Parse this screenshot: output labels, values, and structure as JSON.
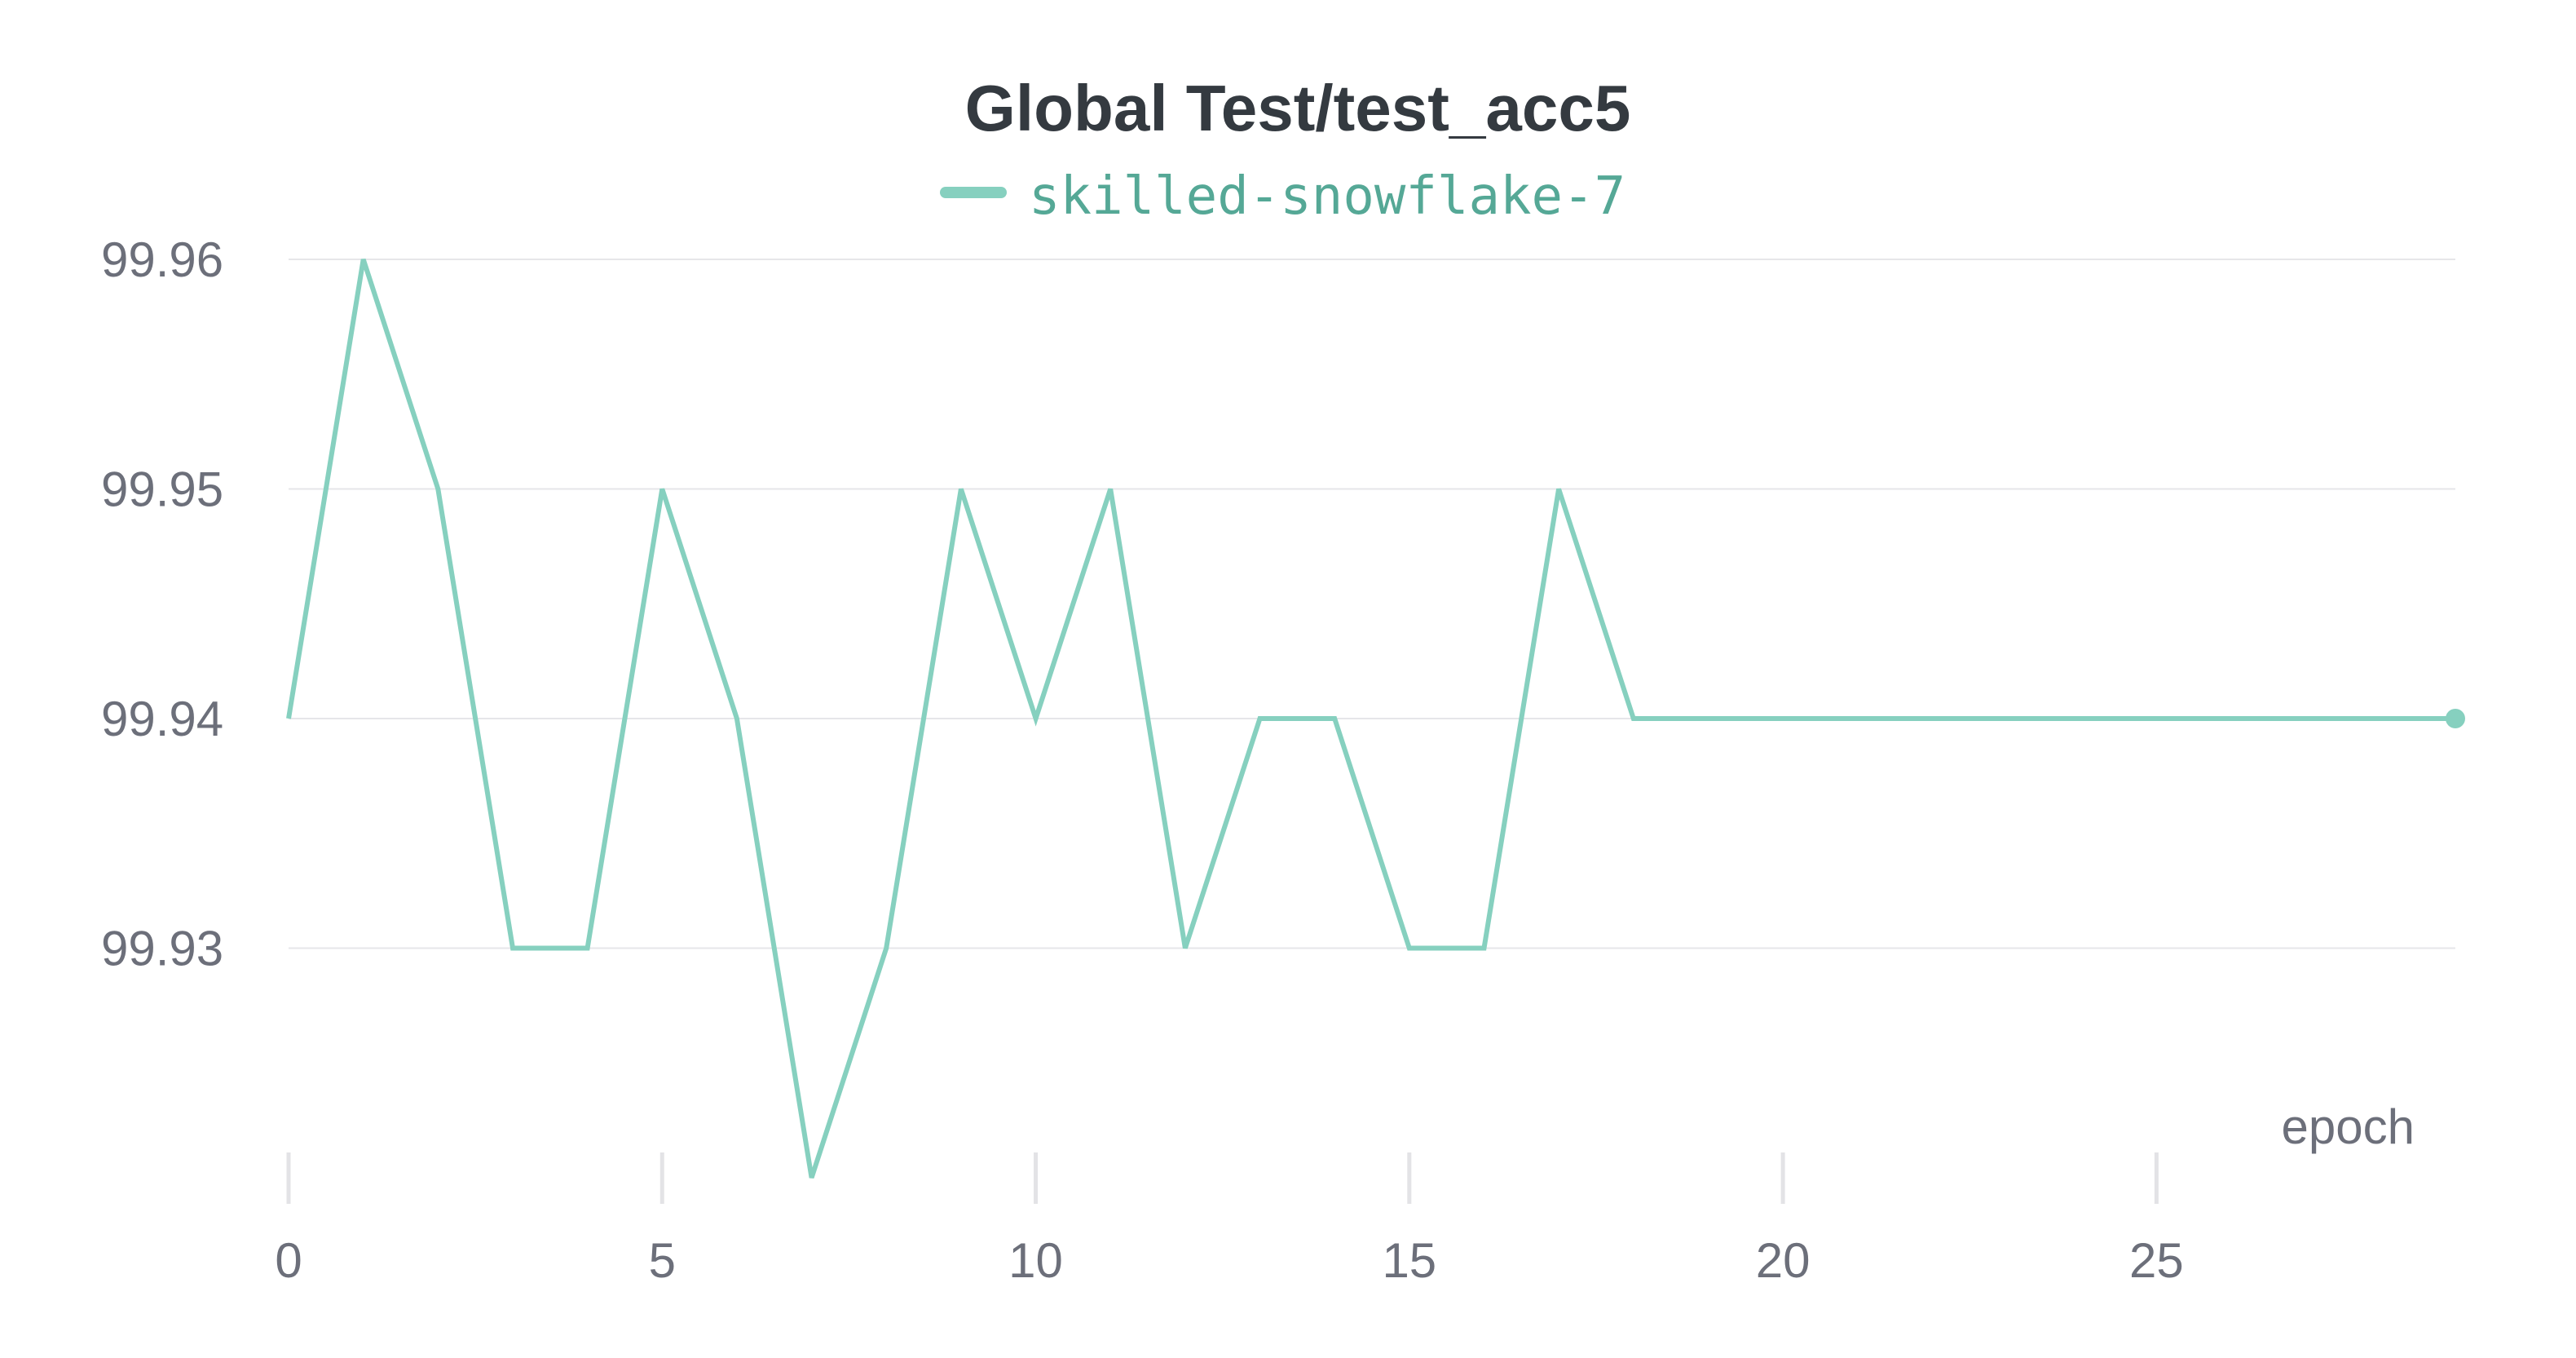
{
  "chart_data": {
    "type": "line",
    "title": "Global Test/test_acc5",
    "xlabel": "epoch",
    "ylabel": "",
    "xlim": [
      0,
      29
    ],
    "ylim": [
      99.92,
      99.96
    ],
    "x_ticks": [
      0,
      5,
      10,
      15,
      20,
      25
    ],
    "y_ticks": [
      99.93,
      99.94,
      99.95,
      99.96
    ],
    "grid": true,
    "legend": "top-center",
    "series": [
      {
        "name": "skilled-snowflake-7",
        "color": "#86d0bf",
        "x": [
          0,
          1,
          2,
          3,
          4,
          5,
          6,
          7,
          8,
          9,
          10,
          11,
          12,
          13,
          14,
          15,
          16,
          17,
          18,
          19,
          20,
          21,
          22,
          23,
          24,
          25,
          26,
          27,
          28,
          29
        ],
        "values": [
          99.94,
          99.96,
          99.95,
          99.93,
          99.93,
          99.95,
          99.94,
          99.92,
          99.93,
          99.95,
          99.94,
          99.95,
          99.93,
          99.94,
          99.94,
          99.93,
          99.93,
          99.95,
          99.94,
          99.94,
          99.94,
          99.94,
          99.94,
          99.94,
          99.94,
          99.94,
          99.94,
          99.94,
          99.94,
          99.94
        ]
      }
    ]
  },
  "colors": {
    "legend_text": "#55a896",
    "title": "#343a40",
    "axis_text": "#6c6f7a"
  }
}
